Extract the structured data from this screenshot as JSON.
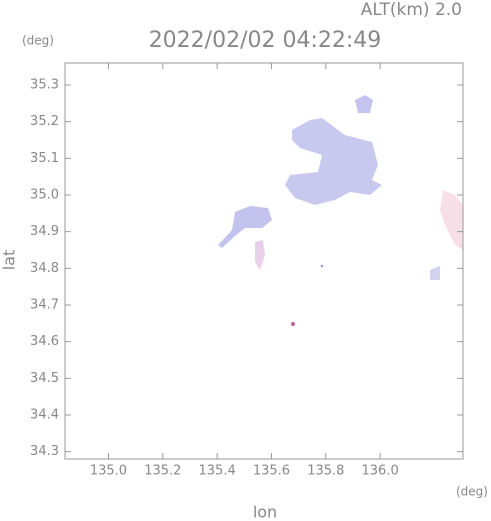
{
  "chart_data": {
    "type": "map",
    "title": "2022/02/02 04:22:49",
    "subtitle": "ALT(km) 2.0",
    "x_label": "lon",
    "y_label": "lat",
    "x_unit": "(deg)",
    "y_unit": "(deg)",
    "xlim": [
      134.84,
      136.305
    ],
    "ylim": [
      34.28,
      35.36
    ],
    "xticks": [
      {
        "value": 135,
        "label": "135.0"
      },
      135.2,
      135.4,
      135.6,
      135.8,
      {
        "value": 136,
        "label": "136.0"
      }
    ],
    "yticks": [
      34.3,
      34.4,
      34.5,
      34.6,
      34.7,
      34.8,
      34.9,
      {
        "value": 35,
        "label": "35.0"
      },
      35.1,
      35.2,
      35.3
    ]
  }
}
